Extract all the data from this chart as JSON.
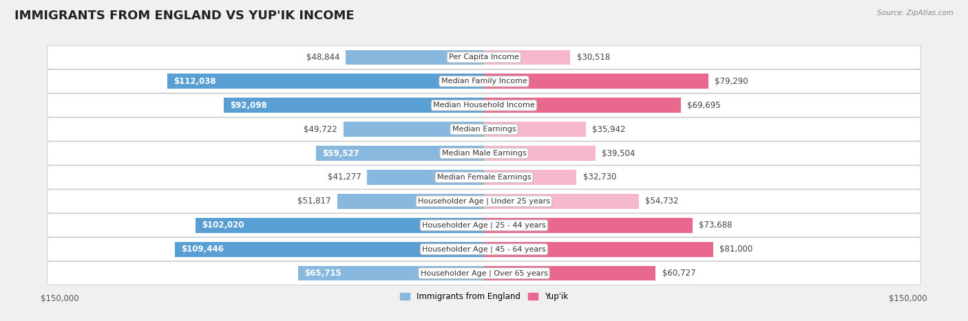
{
  "title": "IMMIGRANTS FROM ENGLAND VS YUP'IK INCOME",
  "source": "Source: ZipAtlas.com",
  "categories": [
    "Per Capita Income",
    "Median Family Income",
    "Median Household Income",
    "Median Earnings",
    "Median Male Earnings",
    "Median Female Earnings",
    "Householder Age | Under 25 years",
    "Householder Age | 25 - 44 years",
    "Householder Age | 45 - 64 years",
    "Householder Age | Over 65 years"
  ],
  "england_values": [
    48844,
    112038,
    92098,
    49722,
    59527,
    41277,
    51817,
    102020,
    109446,
    65715
  ],
  "yupik_values": [
    30518,
    79290,
    69695,
    35942,
    39504,
    32730,
    54732,
    73688,
    81000,
    60727
  ],
  "england_labels": [
    "$48,844",
    "$112,038",
    "$92,098",
    "$49,722",
    "$59,527",
    "$41,277",
    "$51,817",
    "$102,020",
    "$109,446",
    "$65,715"
  ],
  "yupik_labels": [
    "$30,518",
    "$79,290",
    "$69,695",
    "$35,942",
    "$39,504",
    "$32,730",
    "$54,732",
    "$73,688",
    "$81,000",
    "$60,727"
  ],
  "england_color": "#89b8df",
  "england_color_strong": "#5a9fd4",
  "yupik_color": "#f5b8cc",
  "yupik_color_strong": "#e8688e",
  "max_value": 150000,
  "legend_england": "Immigrants from England",
  "legend_yupik": "Yup'ik",
  "bar_height": 0.62,
  "background_color": "#f0f0f0",
  "title_fontsize": 13,
  "label_fontsize": 8.5,
  "category_fontsize": 8,
  "axis_label_fontsize": 8.5,
  "inside_label_threshold": 0.38
}
